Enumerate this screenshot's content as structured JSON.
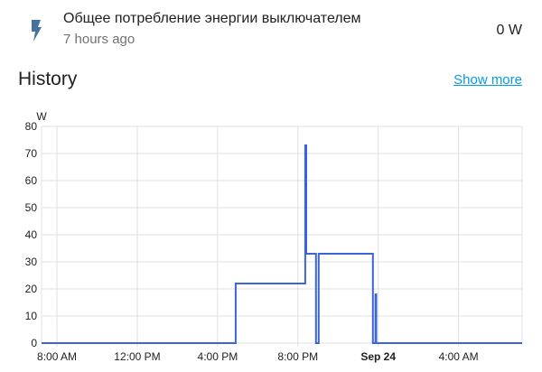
{
  "entity": {
    "name": "Общее потребление энергии выключателем",
    "last_changed": "7 hours ago",
    "state": "0 W",
    "icon": "flash-icon",
    "icon_color": "#44739e"
  },
  "history": {
    "title": "History",
    "show_more": "Show more"
  },
  "chart_data": {
    "type": "line",
    "step": true,
    "ylabel": "W",
    "ylim": [
      0,
      80
    ],
    "yticks": [
      "0",
      "10",
      "20",
      "30",
      "40",
      "50",
      "60",
      "70",
      "80"
    ],
    "xrange": [
      "Sep 23 07:14",
      "Sep 24 07:10"
    ],
    "xticks": [
      {
        "label": "8:00 AM",
        "t": "Sep 23 08:00"
      },
      {
        "label": "12:00 PM",
        "t": "Sep 23 12:00"
      },
      {
        "label": "4:00 PM",
        "t": "Sep 23 16:00"
      },
      {
        "label": "8:00 PM",
        "t": "Sep 23 20:00"
      },
      {
        "label": "Sep 24",
        "t": "Sep 24 00:00",
        "bold": true
      },
      {
        "label": "4:00 AM",
        "t": "Sep 24 04:00"
      }
    ],
    "grid": true,
    "color": "#3b64d6",
    "points": [
      [
        "Sep 23 07:14",
        0
      ],
      [
        "Sep 23 16:54",
        22
      ],
      [
        "Sep 23 20:22",
        73
      ],
      [
        "Sep 23 20:25",
        33
      ],
      [
        "Sep 23 20:54",
        0
      ],
      [
        "Sep 23 21:02",
        33
      ],
      [
        "Sep 23 23:44",
        0
      ],
      [
        "Sep 23 23:52",
        18
      ],
      [
        "Sep 23 23:54",
        0
      ],
      [
        "Sep 24 07:10",
        0
      ]
    ]
  }
}
